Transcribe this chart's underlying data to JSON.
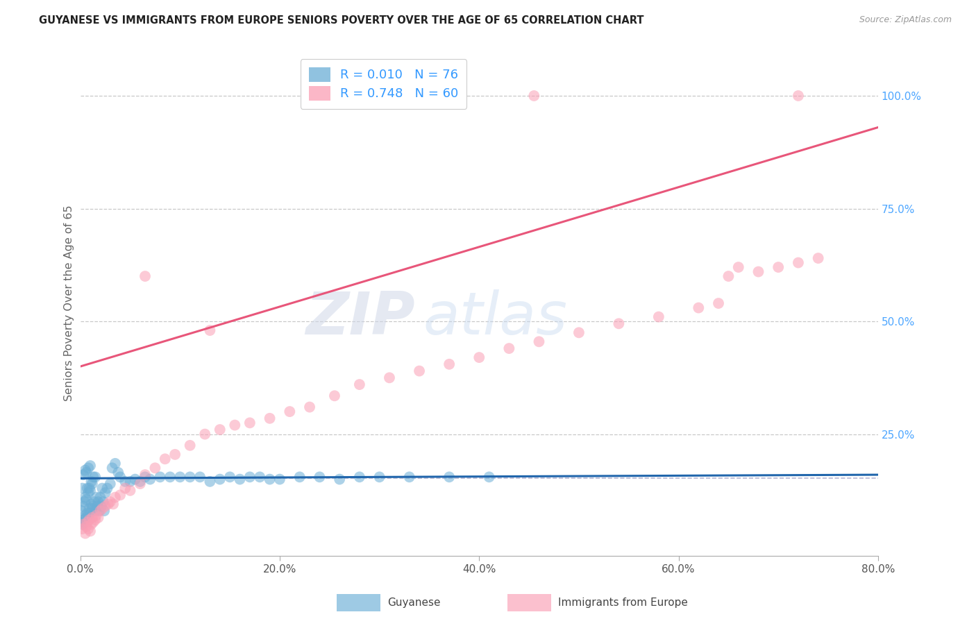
{
  "title": "GUYANESE VS IMMIGRANTS FROM EUROPE SENIORS POVERTY OVER THE AGE OF 65 CORRELATION CHART",
  "source": "Source: ZipAtlas.com",
  "ylabel": "Seniors Poverty Over the Age of 65",
  "xlim": [
    0.0,
    0.8
  ],
  "ylim": [
    -0.02,
    1.1
  ],
  "xtick_labels": [
    "0.0%",
    "20.0%",
    "40.0%",
    "60.0%",
    "80.0%"
  ],
  "xtick_vals": [
    0.0,
    0.2,
    0.4,
    0.6,
    0.8
  ],
  "ytick_labels": [
    "25.0%",
    "50.0%",
    "75.0%",
    "100.0%"
  ],
  "ytick_vals": [
    0.25,
    0.5,
    0.75,
    1.0
  ],
  "legend_label1": "Guyanese",
  "legend_label2": "Immigrants from Europe",
  "R1": "0.010",
  "N1": "76",
  "R2": "0.748",
  "N2": "60",
  "blue_color": "#6baed6",
  "pink_color": "#fa9fb5",
  "blue_line_color": "#2166ac",
  "pink_line_color": "#e8567a",
  "watermark_zip": "ZIP",
  "watermark_atlas": "atlas",
  "blue_scatter_x": [
    0.001,
    0.002,
    0.002,
    0.003,
    0.003,
    0.003,
    0.004,
    0.004,
    0.005,
    0.005,
    0.005,
    0.006,
    0.006,
    0.006,
    0.007,
    0.007,
    0.008,
    0.008,
    0.008,
    0.009,
    0.009,
    0.01,
    0.01,
    0.01,
    0.011,
    0.011,
    0.012,
    0.012,
    0.013,
    0.013,
    0.014,
    0.015,
    0.015,
    0.016,
    0.017,
    0.018,
    0.019,
    0.02,
    0.021,
    0.022,
    0.023,
    0.024,
    0.025,
    0.027,
    0.03,
    0.032,
    0.035,
    0.038,
    0.04,
    0.045,
    0.05,
    0.055,
    0.06,
    0.065,
    0.07,
    0.08,
    0.09,
    0.1,
    0.11,
    0.12,
    0.13,
    0.14,
    0.15,
    0.16,
    0.17,
    0.18,
    0.19,
    0.2,
    0.22,
    0.24,
    0.26,
    0.28,
    0.3,
    0.33,
    0.37,
    0.41
  ],
  "blue_scatter_y": [
    0.08,
    0.05,
    0.13,
    0.055,
    0.09,
    0.16,
    0.06,
    0.1,
    0.07,
    0.11,
    0.17,
    0.065,
    0.105,
    0.165,
    0.075,
    0.13,
    0.07,
    0.12,
    0.175,
    0.085,
    0.13,
    0.075,
    0.125,
    0.18,
    0.095,
    0.145,
    0.085,
    0.14,
    0.09,
    0.155,
    0.1,
    0.08,
    0.155,
    0.11,
    0.09,
    0.1,
    0.08,
    0.11,
    0.09,
    0.13,
    0.1,
    0.08,
    0.12,
    0.13,
    0.14,
    0.175,
    0.185,
    0.165,
    0.155,
    0.145,
    0.145,
    0.15,
    0.145,
    0.155,
    0.15,
    0.155,
    0.155,
    0.155,
    0.155,
    0.155,
    0.145,
    0.15,
    0.155,
    0.15,
    0.155,
    0.155,
    0.15,
    0.15,
    0.155,
    0.155,
    0.15,
    0.155,
    0.155,
    0.155,
    0.155,
    0.155
  ],
  "pink_scatter_x": [
    0.002,
    0.003,
    0.005,
    0.006,
    0.007,
    0.008,
    0.009,
    0.01,
    0.011,
    0.012,
    0.013,
    0.015,
    0.016,
    0.018,
    0.02,
    0.022,
    0.025,
    0.028,
    0.03,
    0.033,
    0.035,
    0.04,
    0.045,
    0.05,
    0.06,
    0.065,
    0.075,
    0.085,
    0.095,
    0.11,
    0.125,
    0.14,
    0.155,
    0.17,
    0.19,
    0.21,
    0.23,
    0.255,
    0.28,
    0.31,
    0.34,
    0.37,
    0.4,
    0.43,
    0.46,
    0.5,
    0.54,
    0.58,
    0.62,
    0.64,
    0.65,
    0.66,
    0.68,
    0.7,
    0.72,
    0.74,
    0.13,
    0.065,
    0.455,
    0.72
  ],
  "pink_scatter_y": [
    0.04,
    0.05,
    0.03,
    0.045,
    0.055,
    0.04,
    0.06,
    0.035,
    0.05,
    0.065,
    0.055,
    0.06,
    0.07,
    0.065,
    0.08,
    0.085,
    0.09,
    0.095,
    0.1,
    0.095,
    0.11,
    0.115,
    0.13,
    0.125,
    0.14,
    0.16,
    0.175,
    0.195,
    0.205,
    0.225,
    0.25,
    0.26,
    0.27,
    0.275,
    0.285,
    0.3,
    0.31,
    0.335,
    0.36,
    0.375,
    0.39,
    0.405,
    0.42,
    0.44,
    0.455,
    0.475,
    0.495,
    0.51,
    0.53,
    0.54,
    0.6,
    0.62,
    0.61,
    0.62,
    0.63,
    0.64,
    0.48,
    0.6,
    1.0,
    1.0
  ],
  "blue_trend_x": [
    0.0,
    0.8
  ],
  "blue_trend_y": [
    0.152,
    0.16
  ],
  "pink_trend_x": [
    0.0,
    0.8
  ],
  "pink_trend_y": [
    0.4,
    0.93
  ],
  "dashed_line_y": 0.152,
  "grid_color": "#bbbbbb",
  "background_color": "#ffffff"
}
